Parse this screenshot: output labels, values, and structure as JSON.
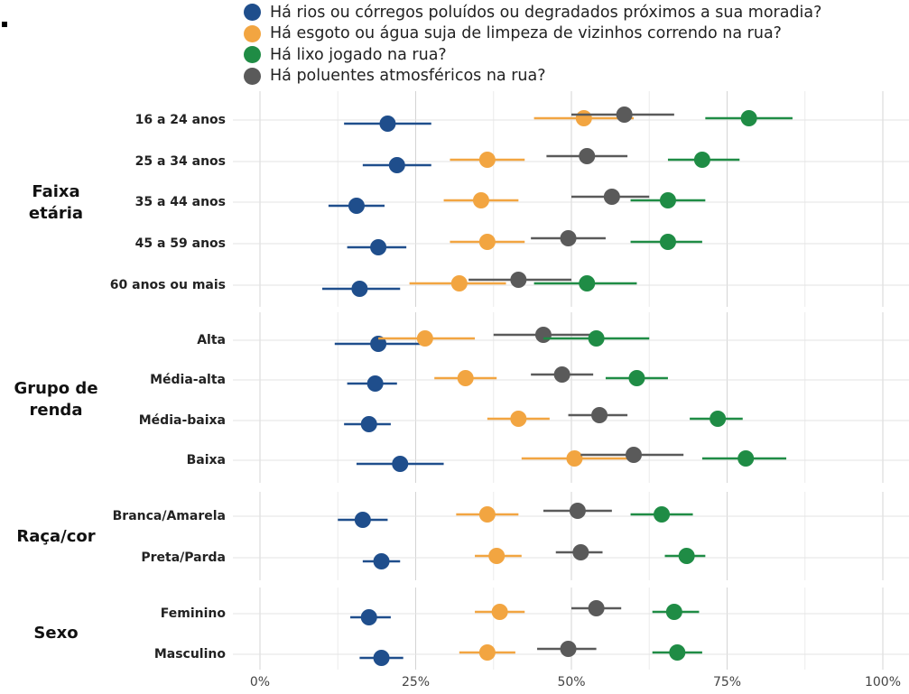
{
  "legend": [
    {
      "name": "Há rios ou córregos poluídos ou degradados próximos a sua moradia?",
      "color": "#1f4e8c"
    },
    {
      "name": "Há esgoto ou água suja de limpeza de vizinhos correndo na rua?",
      "color": "#f2a541"
    },
    {
      "name": "Há lixo jogado na rua?",
      "color": "#1f8c45"
    },
    {
      "name": "Há poluentes atmosféricos na rua?",
      "color": "#5a5a5a"
    }
  ],
  "chart_data": {
    "type": "scatter",
    "subtype": "dot-and-whisker",
    "xlim": [
      0,
      100
    ],
    "x_ticks": [
      "0%",
      "25%",
      "50%",
      "75%",
      "100%"
    ],
    "x_tick_values": [
      0,
      25,
      50,
      75,
      100
    ],
    "grid": true,
    "legend_position": "top",
    "series_names": [
      "Há rios ou córregos poluídos ou degradados próximos a sua moradia?",
      "Há esgoto ou água suja de limpeza de vizinhos correndo na rua?",
      "Há lixo jogado na rua?",
      "Há poluentes atmosféricos na rua?"
    ],
    "series_colors": [
      "#1f4e8c",
      "#f2a541",
      "#1f8c45",
      "#5a5a5a"
    ],
    "groups": [
      {
        "label": "Faixa etária",
        "rows": [
          {
            "label": "16 a 24 anos",
            "points": [
              {
                "value": 20.5,
                "lo": 13.5,
                "hi": 27.5
              },
              {
                "value": 52,
                "lo": 44,
                "hi": 60
              },
              {
                "value": 78.5,
                "lo": 71.5,
                "hi": 85.5
              },
              {
                "value": 58.5,
                "lo": 50,
                "hi": 66.5
              }
            ]
          },
          {
            "label": "25 a 34 anos",
            "points": [
              {
                "value": 22,
                "lo": 16.5,
                "hi": 27.5
              },
              {
                "value": 36.5,
                "lo": 30.5,
                "hi": 42.5
              },
              {
                "value": 71,
                "lo": 65.5,
                "hi": 77
              },
              {
                "value": 52.5,
                "lo": 46,
                "hi": 59
              }
            ]
          },
          {
            "label": "35 a 44 anos",
            "points": [
              {
                "value": 15.5,
                "lo": 11,
                "hi": 20
              },
              {
                "value": 35.5,
                "lo": 29.5,
                "hi": 41.5
              },
              {
                "value": 65.5,
                "lo": 59.5,
                "hi": 71.5
              },
              {
                "value": 56.5,
                "lo": 50,
                "hi": 62.5
              }
            ]
          },
          {
            "label": "45 a 59 anos",
            "points": [
              {
                "value": 19,
                "lo": 14,
                "hi": 23.5
              },
              {
                "value": 36.5,
                "lo": 30.5,
                "hi": 42.5
              },
              {
                "value": 65.5,
                "lo": 59.5,
                "hi": 71
              },
              {
                "value": 49.5,
                "lo": 43.5,
                "hi": 55.5
              }
            ]
          },
          {
            "label": "60 anos ou mais",
            "points": [
              {
                "value": 16,
                "lo": 10,
                "hi": 22.5
              },
              {
                "value": 32,
                "lo": 24,
                "hi": 39.5
              },
              {
                "value": 52.5,
                "lo": 44,
                "hi": 60.5
              },
              {
                "value": 41.5,
                "lo": 33.5,
                "hi": 50
              }
            ]
          }
        ]
      },
      {
        "label": "Grupo de renda",
        "rows": [
          {
            "label": "Alta",
            "points": [
              {
                "value": 19,
                "lo": 12,
                "hi": 26
              },
              {
                "value": 26.5,
                "lo": 19,
                "hi": 34.5
              },
              {
                "value": 54,
                "lo": 45.5,
                "hi": 62.5
              },
              {
                "value": 45.5,
                "lo": 37.5,
                "hi": 53.5
              }
            ]
          },
          {
            "label": "Média-alta",
            "points": [
              {
                "value": 18.5,
                "lo": 14,
                "hi": 22
              },
              {
                "value": 33,
                "lo": 28,
                "hi": 38
              },
              {
                "value": 60.5,
                "lo": 55.5,
                "hi": 65.5
              },
              {
                "value": 48.5,
                "lo": 43.5,
                "hi": 53.5
              }
            ]
          },
          {
            "label": "Média-baixa",
            "points": [
              {
                "value": 17.5,
                "lo": 13.5,
                "hi": 21
              },
              {
                "value": 41.5,
                "lo": 36.5,
                "hi": 46.5
              },
              {
                "value": 73.5,
                "lo": 69,
                "hi": 77.5
              },
              {
                "value": 54.5,
                "lo": 49.5,
                "hi": 59
              }
            ]
          },
          {
            "label": "Baixa",
            "points": [
              {
                "value": 22.5,
                "lo": 15.5,
                "hi": 29.5
              },
              {
                "value": 50.5,
                "lo": 42,
                "hi": 59
              },
              {
                "value": 78,
                "lo": 71,
                "hi": 84.5
              },
              {
                "value": 60,
                "lo": 51.5,
                "hi": 68
              }
            ]
          }
        ]
      },
      {
        "label": "Raça/cor",
        "rows": [
          {
            "label": "Branca/Amarela",
            "points": [
              {
                "value": 16.5,
                "lo": 12.5,
                "hi": 20.5
              },
              {
                "value": 36.5,
                "lo": 31.5,
                "hi": 41.5
              },
              {
                "value": 64.5,
                "lo": 59.5,
                "hi": 69.5
              },
              {
                "value": 51,
                "lo": 45.5,
                "hi": 56.5
              }
            ]
          },
          {
            "label": "Preta/Parda",
            "points": [
              {
                "value": 19.5,
                "lo": 16.5,
                "hi": 22.5
              },
              {
                "value": 38,
                "lo": 34.5,
                "hi": 42
              },
              {
                "value": 68.5,
                "lo": 65,
                "hi": 71.5
              },
              {
                "value": 51.5,
                "lo": 47.5,
                "hi": 55
              }
            ]
          }
        ]
      },
      {
        "label": "Sexo",
        "rows": [
          {
            "label": "Feminino",
            "points": [
              {
                "value": 17.5,
                "lo": 14.5,
                "hi": 21
              },
              {
                "value": 38.5,
                "lo": 34.5,
                "hi": 42.5
              },
              {
                "value": 66.5,
                "lo": 63,
                "hi": 70.5
              },
              {
                "value": 54,
                "lo": 50,
                "hi": 58
              }
            ]
          },
          {
            "label": "Masculino",
            "points": [
              {
                "value": 19.5,
                "lo": 16,
                "hi": 23
              },
              {
                "value": 36.5,
                "lo": 32,
                "hi": 41
              },
              {
                "value": 67,
                "lo": 63,
                "hi": 71
              },
              {
                "value": 49.5,
                "lo": 44.5,
                "hi": 54
              }
            ]
          }
        ]
      }
    ]
  }
}
